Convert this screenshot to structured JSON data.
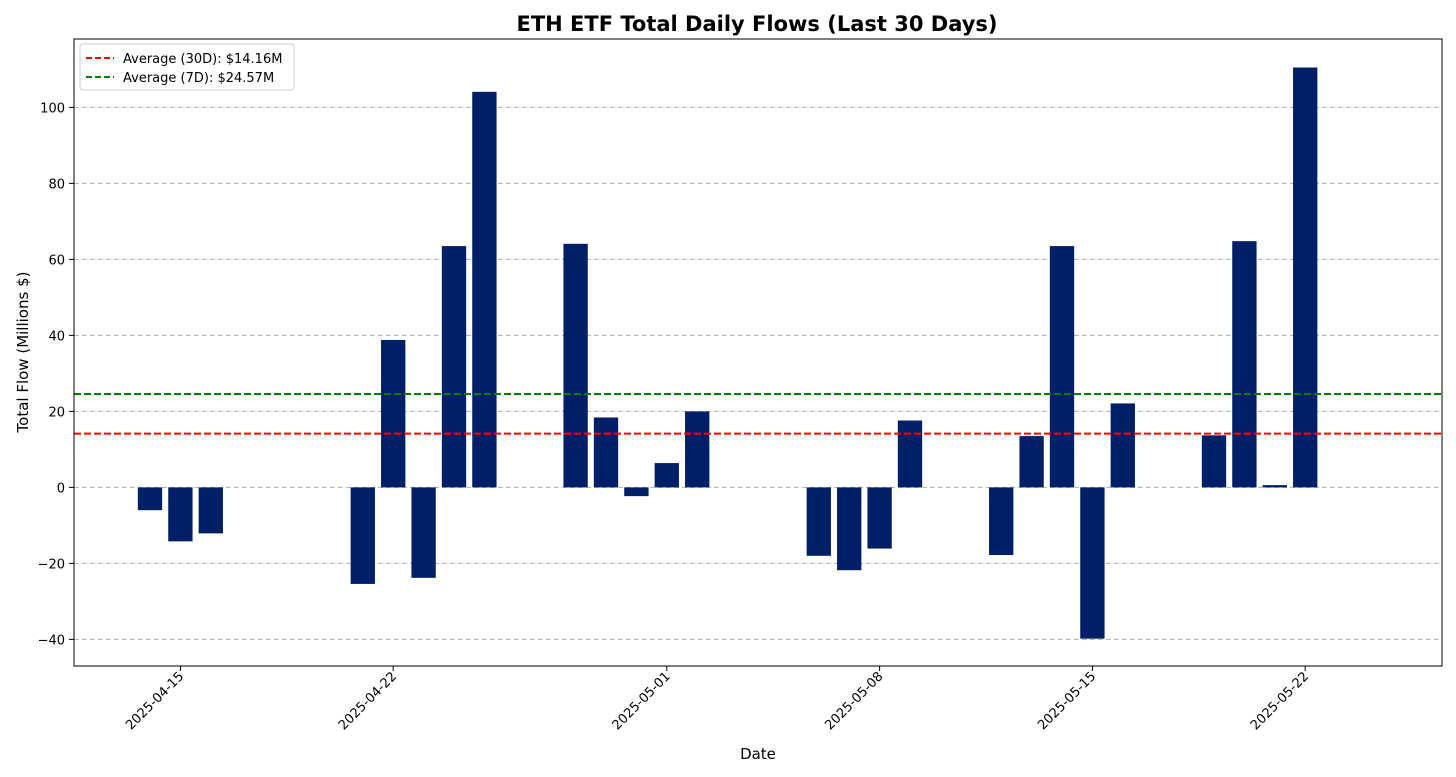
{
  "chart_data": {
    "type": "bar",
    "title": "ETH ETF Total Daily Flows (Last 30 Days)",
    "xlabel": "Date",
    "ylabel": "Total Flow (Millions $)",
    "ylim": [
      -47,
      118
    ],
    "xlim": [
      "2025-04-11 12:00",
      "2025-05-26 12:00"
    ],
    "yticks": [
      -40,
      -20,
      0,
      20,
      40,
      60,
      80,
      100
    ],
    "xticks": [
      "2025-04-15",
      "2025-04-22",
      "2025-05-01",
      "2025-05-08",
      "2025-05-15",
      "2025-05-22"
    ],
    "grid": "y-dashed",
    "bar_color": "#001f66",
    "data": [
      {
        "date": "2025-04-14",
        "value": -6
      },
      {
        "date": "2025-04-15",
        "value": -14.2
      },
      {
        "date": "2025-04-16",
        "value": -12.1
      },
      {
        "date": "2025-04-21",
        "value": -25.4
      },
      {
        "date": "2025-04-22",
        "value": 38.8
      },
      {
        "date": "2025-04-23",
        "value": -23.8
      },
      {
        "date": "2025-04-24",
        "value": 63.5
      },
      {
        "date": "2025-04-25",
        "value": 104.1
      },
      {
        "date": "2025-04-28",
        "value": 64.1
      },
      {
        "date": "2025-04-29",
        "value": 18.4
      },
      {
        "date": "2025-04-30",
        "value": -2.3
      },
      {
        "date": "2025-05-01",
        "value": 6.4
      },
      {
        "date": "2025-05-02",
        "value": 20
      },
      {
        "date": "2025-05-06",
        "value": -18
      },
      {
        "date": "2025-05-07",
        "value": -21.8
      },
      {
        "date": "2025-05-08",
        "value": -16.1
      },
      {
        "date": "2025-05-09",
        "value": 17.6
      },
      {
        "date": "2025-05-12",
        "value": -17.8
      },
      {
        "date": "2025-05-13",
        "value": 13.5
      },
      {
        "date": "2025-05-14",
        "value": 63.5
      },
      {
        "date": "2025-05-15",
        "value": -39.8
      },
      {
        "date": "2025-05-16",
        "value": 22.1
      },
      {
        "date": "2025-05-19",
        "value": 13.7
      },
      {
        "date": "2025-05-20",
        "value": 64.8
      },
      {
        "date": "2025-05-21",
        "value": 0.6
      },
      {
        "date": "2025-05-22",
        "value": 110.5
      }
    ],
    "reference_lines": [
      {
        "label": "Average (30D): $14.16M",
        "value": 14.16,
        "color": "#ff0000"
      },
      {
        "label": "Average (7D): $24.57M",
        "value": 24.57,
        "color": "#008000"
      }
    ],
    "legend": {
      "placement": "top-left"
    }
  }
}
